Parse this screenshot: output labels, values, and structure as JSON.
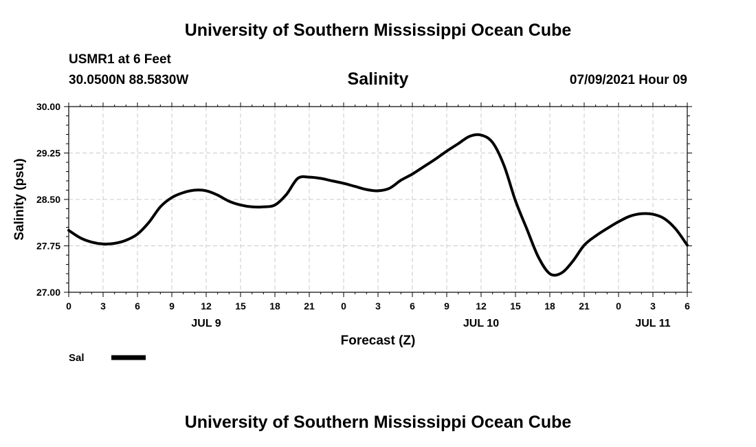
{
  "header": {
    "title": "University of Southern Mississippi Ocean Cube",
    "station": "USMR1 at 6 Feet",
    "coords": "30.0500N  88.5830W",
    "date": "07/09/2021 Hour 09"
  },
  "footer": {
    "title": "University of Southern Mississippi Ocean Cube"
  },
  "chart_data": {
    "type": "line",
    "title": "Salinity",
    "xlabel": "Forecast (Z)",
    "ylabel": "Salinity (psu)",
    "ylim": [
      27.0,
      30.0
    ],
    "xlim": [
      0,
      54
    ],
    "grid": true,
    "x_ticks": [
      0,
      3,
      6,
      9,
      12,
      15,
      18,
      21,
      24,
      27,
      30,
      33,
      36,
      39,
      42,
      45,
      48,
      51,
      54
    ],
    "x_tick_labels": [
      "0",
      "3",
      "6",
      "9",
      "12",
      "15",
      "18",
      "21",
      "0",
      "3",
      "6",
      "9",
      "12",
      "15",
      "18",
      "21",
      "0",
      "3",
      "6"
    ],
    "y_ticks": [
      27.0,
      27.75,
      28.5,
      29.25,
      30.0
    ],
    "y_tick_labels": [
      "27.00",
      "27.75",
      "28.50",
      "29.25",
      "30.00"
    ],
    "day_labels": [
      {
        "x": 12,
        "label": "JUL 9"
      },
      {
        "x": 36,
        "label": "JUL 10"
      },
      {
        "x": 51,
        "label": "JUL 11"
      }
    ],
    "legend": {
      "placement": "bottom-left",
      "label": "Sal"
    },
    "series": [
      {
        "name": "Sal",
        "color": "#000000",
        "x": [
          0,
          1,
          2,
          3,
          4,
          5,
          6,
          7,
          8,
          9,
          10,
          11,
          12,
          13,
          14,
          15,
          16,
          17,
          18,
          19,
          20,
          21,
          22,
          23,
          24,
          25,
          26,
          27,
          28,
          29,
          30,
          31,
          32,
          33,
          34,
          35,
          36,
          37,
          38,
          39,
          40,
          41,
          42,
          43,
          44,
          45,
          46,
          47,
          48,
          49,
          50,
          51,
          52,
          53,
          54
        ],
        "values": [
          28.0,
          27.88,
          27.81,
          27.78,
          27.79,
          27.84,
          27.94,
          28.13,
          28.38,
          28.53,
          28.61,
          28.65,
          28.64,
          28.57,
          28.47,
          28.41,
          28.38,
          28.38,
          28.41,
          28.58,
          28.84,
          28.86,
          28.84,
          28.8,
          28.76,
          28.71,
          28.66,
          28.64,
          28.68,
          28.81,
          28.91,
          29.03,
          29.15,
          29.28,
          29.4,
          29.52,
          29.54,
          29.42,
          29.05,
          28.48,
          28.02,
          27.57,
          27.3,
          27.31,
          27.5,
          27.76,
          27.91,
          28.03,
          28.14,
          28.23,
          28.27,
          28.26,
          28.19,
          28.02,
          27.76
        ]
      }
    ]
  }
}
